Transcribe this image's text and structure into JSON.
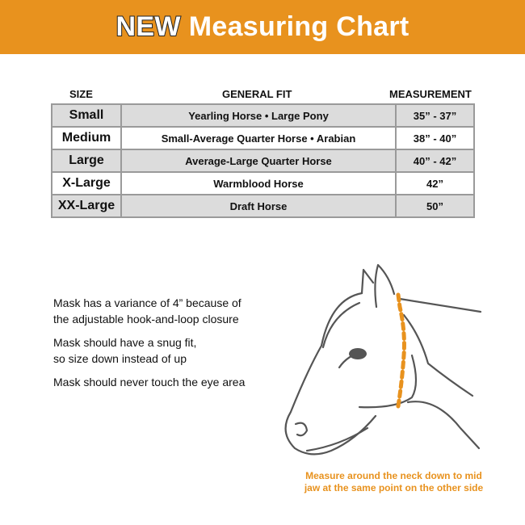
{
  "header": {
    "new_label": "NEW",
    "title": "Measuring Chart",
    "color": "#E8921E"
  },
  "table": {
    "headers": [
      "SIZE",
      "GENERAL FIT",
      "MEASUREMENT"
    ],
    "rows": [
      {
        "size": "Small",
        "fit": "Yearling Horse • Large Pony",
        "measurement": "35” - 37”"
      },
      {
        "size": "Medium",
        "fit": "Small-Average Quarter Horse • Arabian",
        "measurement": "38” - 40”"
      },
      {
        "size": "Large",
        "fit": "Average-Large Quarter Horse",
        "measurement": "40” - 42”"
      },
      {
        "size": "X-Large",
        "fit": "Warmblood Horse",
        "measurement": "42”"
      },
      {
        "size": "XX-Large",
        "fit": "Draft Horse",
        "measurement": "50”"
      }
    ]
  },
  "notes": [
    [
      "Mask has a variance of 4” because of",
      "the adjustable hook-and-loop closure"
    ],
    [
      "Mask should have a snug fit,",
      "so size down instead of up"
    ],
    [
      "Mask should never touch the eye area"
    ]
  ],
  "illustration": {
    "icon": "horse-head-measure-illustration",
    "caption": [
      "Measure around the neck down to mid",
      "jaw at the same point on the other side"
    ]
  }
}
